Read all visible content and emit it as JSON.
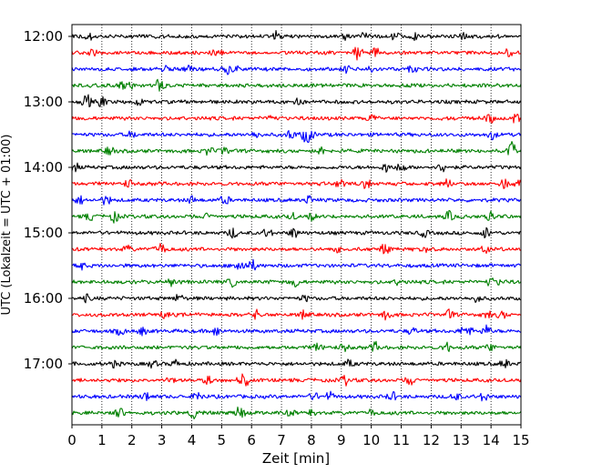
{
  "chart_data": {
    "type": "line",
    "subtype": "helicorder-seismogram",
    "xlabel": "Zeit  [min]",
    "ylabel": "UTC (Lokalzeit = UTC + 01:00)",
    "xlim": [
      0,
      15
    ],
    "x_ticks": [
      "0",
      "1",
      "2",
      "3",
      "4",
      "5",
      "6",
      "7",
      "8",
      "9",
      "10",
      "11",
      "12",
      "13",
      "14",
      "15"
    ],
    "y_tick_labels": [
      "12:00",
      "13:00",
      "14:00",
      "15:00",
      "16:00",
      "17:00"
    ],
    "grid": "vertical dotted lines at each minute",
    "trace_colors": [
      "#000000",
      "#ff0000",
      "#0000ff",
      "#008000"
    ],
    "traces_per_hour": 4,
    "trace_count": 24,
    "traces": [
      "12:00",
      "12:15",
      "12:30",
      "12:45",
      "13:00",
      "13:15",
      "13:30",
      "13:45",
      "14:00",
      "14:15",
      "14:30",
      "14:45",
      "15:00",
      "15:15",
      "15:30",
      "15:45",
      "16:00",
      "16:15",
      "16:30",
      "16:45",
      "17:00",
      "17:15",
      "17:30",
      "17:45"
    ]
  }
}
